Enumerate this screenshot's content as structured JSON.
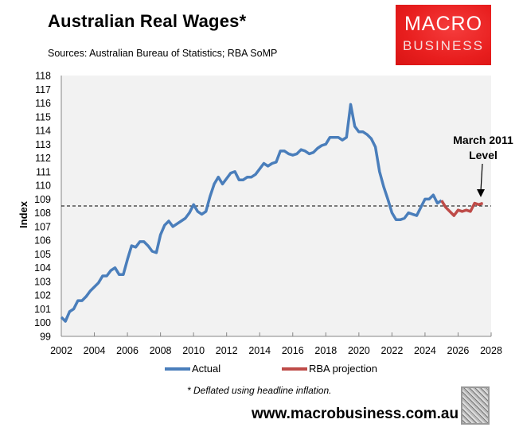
{
  "header": {
    "title": "Australian Real Wages*",
    "sources": "Sources: Australian Bureau of Statistics; RBA SoMP",
    "logo_line1": "MACRO",
    "logo_line2": "BUSINESS",
    "logo_color": "#e81e1e"
  },
  "footer": {
    "footnote": "* Deflated using headline inflation.",
    "website": "www.macrobusiness.com.au",
    "wolf_icon": "wolf-head-image"
  },
  "legend": {
    "actual": "Actual",
    "projection": "RBA projection"
  },
  "annotation": {
    "line1": "March 2011",
    "line2": "Level"
  },
  "colors": {
    "actual": "#4a7ebb",
    "projection": "#be4b48",
    "plot_bg": "#f2f2f2",
    "reference_line": "#000000"
  },
  "chart_data": {
    "type": "line",
    "title": "Australian Real Wages*",
    "subtitle": "Sources: Australian Bureau of Statistics; RBA SoMP",
    "xlabel": "",
    "ylabel": "Index",
    "xlim": [
      2002,
      2028
    ],
    "ylim": [
      99,
      118
    ],
    "x_ticks": [
      2002,
      2004,
      2006,
      2008,
      2010,
      2012,
      2014,
      2016,
      2018,
      2020,
      2022,
      2024,
      2026,
      2028
    ],
    "y_ticks": [
      99,
      100,
      101,
      102,
      103,
      104,
      105,
      106,
      107,
      108,
      109,
      110,
      111,
      112,
      113,
      114,
      115,
      116,
      117,
      118
    ],
    "grid": false,
    "legend_position": "bottom",
    "reference_line": {
      "label": "March 2011 Level",
      "value": 108.5,
      "style": "dashed"
    },
    "series": [
      {
        "name": "Actual",
        "color": "#4a7ebb",
        "x_start": 2002.0,
        "x_step": 0.25,
        "values": [
          100.4,
          100.1,
          100.8,
          101.0,
          101.6,
          101.6,
          101.9,
          102.3,
          102.6,
          102.9,
          103.4,
          103.4,
          103.8,
          104.0,
          103.5,
          103.5,
          104.6,
          105.6,
          105.5,
          105.9,
          105.9,
          105.6,
          105.2,
          105.1,
          106.4,
          107.1,
          107.4,
          107.0,
          107.2,
          107.4,
          107.6,
          108.0,
          108.6,
          108.1,
          107.9,
          108.1,
          109.2,
          110.1,
          110.6,
          110.1,
          110.5,
          110.9,
          111.0,
          110.4,
          110.4,
          110.6,
          110.6,
          110.8,
          111.2,
          111.6,
          111.4,
          111.6,
          111.7,
          112.5,
          112.5,
          112.3,
          112.2,
          112.3,
          112.6,
          112.5,
          112.3,
          112.4,
          112.7,
          112.9,
          113.0,
          113.5,
          113.5,
          113.5,
          113.3,
          113.5,
          115.9,
          114.3,
          113.9,
          113.9,
          113.7,
          113.4,
          112.8,
          111.0,
          109.9,
          109.0,
          108.0,
          107.5,
          107.5,
          107.6,
          108.0,
          107.9,
          107.8,
          108.4,
          109.0,
          109.0,
          109.3,
          108.7,
          108.9
        ]
      },
      {
        "name": "RBA projection",
        "color": "#be4b48",
        "x_start": 2025.0,
        "x_step": 0.25,
        "values": [
          108.9,
          108.4,
          108.1,
          107.8,
          108.2,
          108.1,
          108.2,
          108.1,
          108.7,
          108.6,
          108.7
        ]
      }
    ]
  }
}
